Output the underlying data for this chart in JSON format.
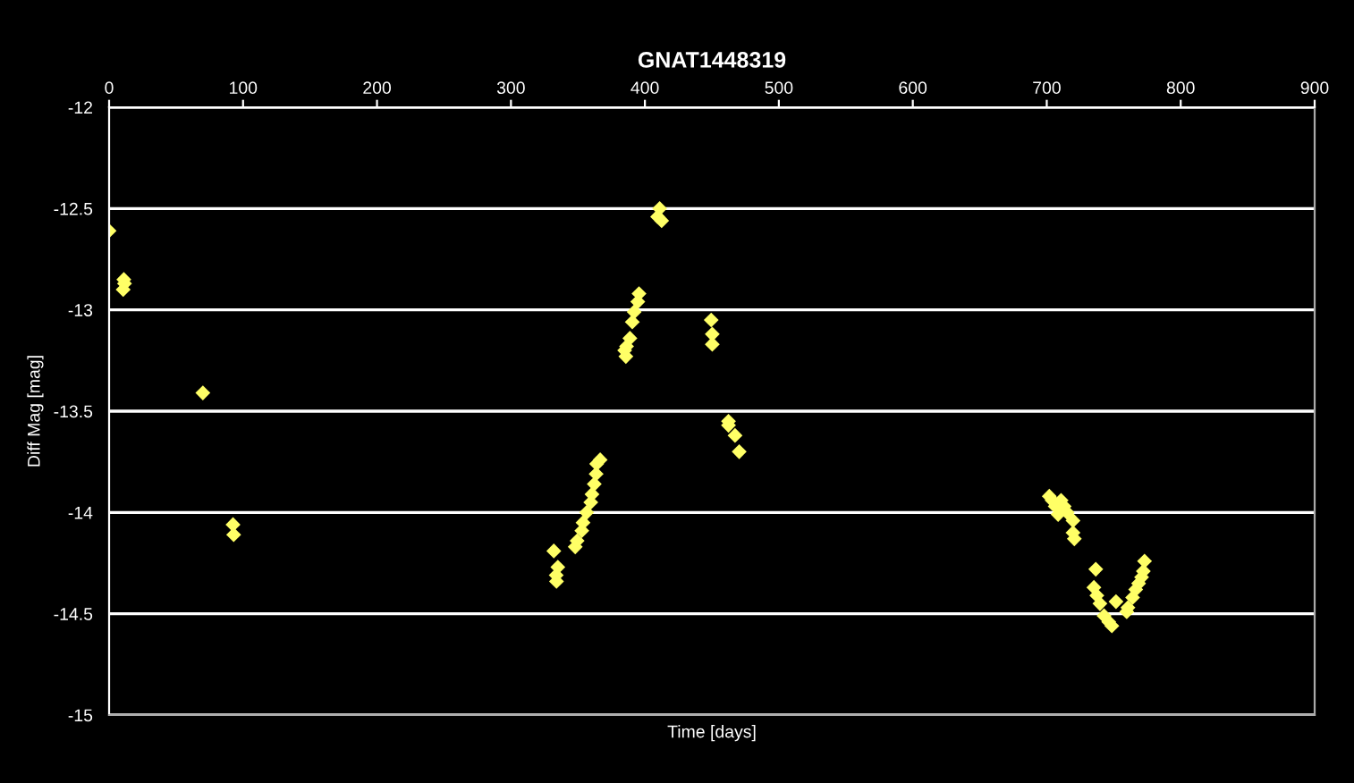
{
  "chart_data": {
    "type": "scatter",
    "title": "GNAT1448319",
    "xlabel": "Time [days]",
    "ylabel": "Diff Mag [mag]",
    "x": [
      0,
      11,
      11.5,
      10.5,
      70,
      92.5,
      93,
      332,
      333.8,
      335,
      334,
      348,
      349.4,
      352.9,
      353.8,
      356.5,
      359.6,
      360.5,
      362.2,
      363.6,
      364,
      366.6,
      384.9,
      385.8,
      386.3,
      388.8,
      390.6,
      392,
      394.7,
      395.6,
      409.5,
      411,
      412.5,
      449.5,
      450.3,
      450.3,
      462.4,
      462.4,
      467.3,
      470.4,
      701.9,
      704,
      706.3,
      708.5,
      710.7,
      713,
      715.2,
      719.6,
      719.6,
      720.6,
      735.2,
      736.6,
      737.4,
      739.7,
      742.8,
      746.3,
      748.6,
      751.7,
      759.7,
      760.6,
      764.1,
      766.4,
      768.6,
      770.8,
      772.1,
      773
    ],
    "series": [
      {
        "color": "#ffff66",
        "values": [
          -12.61,
          -12.85,
          -12.87,
          -12.9,
          -13.41,
          -14.06,
          -14.11,
          -14.19,
          -14.31,
          -14.27,
          -14.34,
          -14.17,
          -14.14,
          -14.09,
          -14.05,
          -14.0,
          -13.95,
          -13.91,
          -13.86,
          -13.81,
          -13.76,
          -13.74,
          -13.2,
          -13.23,
          -13.18,
          -13.14,
          -13.06,
          -13.01,
          -12.96,
          -12.92,
          -12.54,
          -12.5,
          -12.56,
          -13.05,
          -13.12,
          -13.17,
          -13.55,
          -13.57,
          -13.62,
          -13.7,
          -13.92,
          -13.94,
          -13.97,
          -14.01,
          -13.94,
          -13.97,
          -14.0,
          -14.04,
          -14.1,
          -14.13,
          -14.37,
          -14.28,
          -14.41,
          -14.45,
          -14.51,
          -14.54,
          -14.56,
          -14.44,
          -14.49,
          -14.47,
          -14.42,
          -14.38,
          -14.35,
          -14.32,
          -14.29,
          -14.24
        ]
      }
    ],
    "xlim": [
      0,
      900
    ],
    "xticks": [
      0,
      100,
      200,
      300,
      400,
      500,
      600,
      700,
      800,
      900
    ],
    "ylim": [
      -15,
      -12
    ],
    "yticks": [
      -15,
      -14.5,
      -14,
      -13.5,
      -13,
      -12.5,
      -12
    ],
    "grid": "y",
    "marker": "diamond",
    "legend": false
  }
}
